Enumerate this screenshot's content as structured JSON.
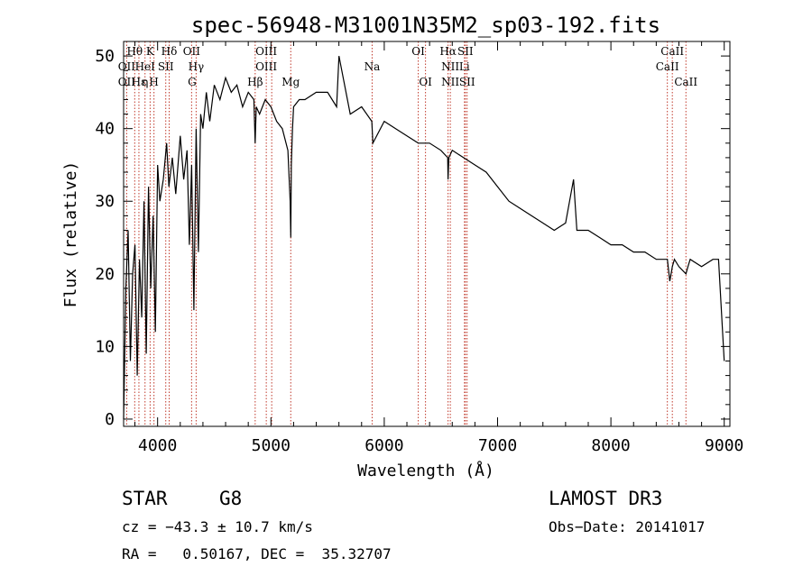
{
  "chart_data": {
    "type": "line",
    "title": "spec-56948-M31001N35M2_sp03-192.fits",
    "xlabel": "Wavelength (Å)",
    "ylabel": "Flux (relative)",
    "xlim": [
      3700,
      9050
    ],
    "ylim": [
      -1,
      52
    ],
    "x_ticks": [
      4000,
      5000,
      6000,
      7000,
      8000,
      9000
    ],
    "y_ticks": [
      0,
      10,
      20,
      30,
      40,
      50
    ],
    "grid": false,
    "series": [
      {
        "name": "spectrum",
        "x": [
          3700,
          3720,
          3740,
          3760,
          3780,
          3800,
          3820,
          3840,
          3860,
          3880,
          3900,
          3920,
          3940,
          3960,
          3980,
          4000,
          4020,
          4050,
          4080,
          4100,
          4130,
          4160,
          4200,
          4230,
          4260,
          4280,
          4300,
          4320,
          4340,
          4360,
          4380,
          4400,
          4430,
          4460,
          4500,
          4550,
          4600,
          4650,
          4700,
          4750,
          4800,
          4850,
          4861,
          4870,
          4900,
          4950,
          5000,
          5050,
          5100,
          5150,
          5170,
          5175,
          5180,
          5190,
          5200,
          5250,
          5300,
          5400,
          5500,
          5580,
          5600,
          5700,
          5800,
          5890,
          5900,
          6000,
          6100,
          6200,
          6300,
          6400,
          6500,
          6560,
          6563,
          6570,
          6600,
          6700,
          6800,
          6900,
          7000,
          7100,
          7200,
          7300,
          7400,
          7500,
          7600,
          7670,
          7700,
          7800,
          7900,
          8000,
          8100,
          8200,
          8300,
          8400,
          8498,
          8520,
          8542,
          8560,
          8600,
          8662,
          8680,
          8700,
          8800,
          8900,
          8950,
          9000
        ],
        "y": [
          0,
          18,
          26,
          8,
          20,
          24,
          6,
          22,
          14,
          30,
          9,
          32,
          18,
          28,
          12,
          35,
          30,
          33,
          38,
          32,
          36,
          31,
          39,
          33,
          37,
          24,
          35,
          15,
          40,
          23,
          42,
          40,
          45,
          41,
          46,
          44,
          47,
          45,
          46,
          43,
          45,
          44,
          38,
          43,
          42,
          44,
          43,
          41,
          40,
          37,
          30,
          25,
          35,
          40,
          43,
          44,
          44,
          45,
          45,
          43,
          50,
          42,
          43,
          41,
          38,
          41,
          40,
          39,
          38,
          38,
          37,
          36,
          33,
          36,
          37,
          36,
          35,
          34,
          32,
          30,
          29,
          28,
          27,
          26,
          27,
          33,
          26,
          26,
          25,
          24,
          24,
          23,
          23,
          22,
          22,
          19,
          21,
          22,
          21,
          20,
          21,
          22,
          21,
          22,
          22,
          8
        ]
      }
    ],
    "lines": [
      {
        "label": "Hθ",
        "wavelength": 3798,
        "row": 0
      },
      {
        "label": "OII",
        "wavelength": 3727,
        "row": 1
      },
      {
        "label": "OII",
        "wavelength": 3727,
        "row": 2
      },
      {
        "label": "Hε",
        "wavelength": 3835,
        "row": 2
      },
      {
        "label": "HeI",
        "wavelength": 3889,
        "row": 1
      },
      {
        "label": "K",
        "wavelength": 3934,
        "row": 0
      },
      {
        "label": "η",
        "wavelength": 3889,
        "row": 2
      },
      {
        "label": "H",
        "wavelength": 3968,
        "row": 2
      },
      {
        "label": "SII",
        "wavelength": 4072,
        "row": 1
      },
      {
        "label": "Hδ",
        "wavelength": 4102,
        "row": 0
      },
      {
        "label": "OII",
        "wavelength": 4300,
        "row": 0
      },
      {
        "label": "Hγ",
        "wavelength": 4340,
        "row": 1
      },
      {
        "label": "G",
        "wavelength": 4304,
        "row": 2
      },
      {
        "label": "OIII",
        "wavelength": 4959,
        "row": 0
      },
      {
        "label": "OIII",
        "wavelength": 4959,
        "row": 1
      },
      {
        "label": "Hβ",
        "wavelength": 4861,
        "row": 2
      },
      {
        "label": "Mg",
        "wavelength": 5175,
        "row": 2
      },
      {
        "label": "Na",
        "wavelength": 5893,
        "row": 1
      },
      {
        "label": "OI",
        "wavelength": 6300,
        "row": 0
      },
      {
        "label": "OI",
        "wavelength": 6364,
        "row": 2
      },
      {
        "label": "Hα",
        "wavelength": 6563,
        "row": 0
      },
      {
        "label": "SII",
        "wavelength": 6716,
        "row": 0
      },
      {
        "label": "NII",
        "wavelength": 6583,
        "row": 1
      },
      {
        "label": "Li",
        "wavelength": 6708,
        "row": 1
      },
      {
        "label": "NII",
        "wavelength": 6583,
        "row": 2
      },
      {
        "label": "SII",
        "wavelength": 6731,
        "row": 2
      },
      {
        "label": "CaII",
        "wavelength": 8542,
        "row": 0
      },
      {
        "label": "CaII",
        "wavelength": 8498,
        "row": 1
      },
      {
        "label": "CaII",
        "wavelength": 8662,
        "row": 2
      }
    ],
    "marker_lines": [
      3727,
      3798,
      3835,
      3889,
      3934,
      3968,
      4072,
      4102,
      4300,
      4340,
      4861,
      4959,
      5007,
      5175,
      5893,
      6300,
      6364,
      6563,
      6583,
      6708,
      6716,
      6731,
      8498,
      8542,
      8662
    ]
  },
  "info": {
    "class": "STAR",
    "subclass": "G8",
    "survey": "LAMOST DR3",
    "cz": "cz = −43.3 ± 10.7 km/s",
    "obs_date": "Obs−Date: 20141017",
    "coords": "RA =   0.50167, DEC =  35.32707"
  },
  "colors": {
    "spectrum": "#000000",
    "marker": "#c0392b",
    "axes": "#000000"
  }
}
